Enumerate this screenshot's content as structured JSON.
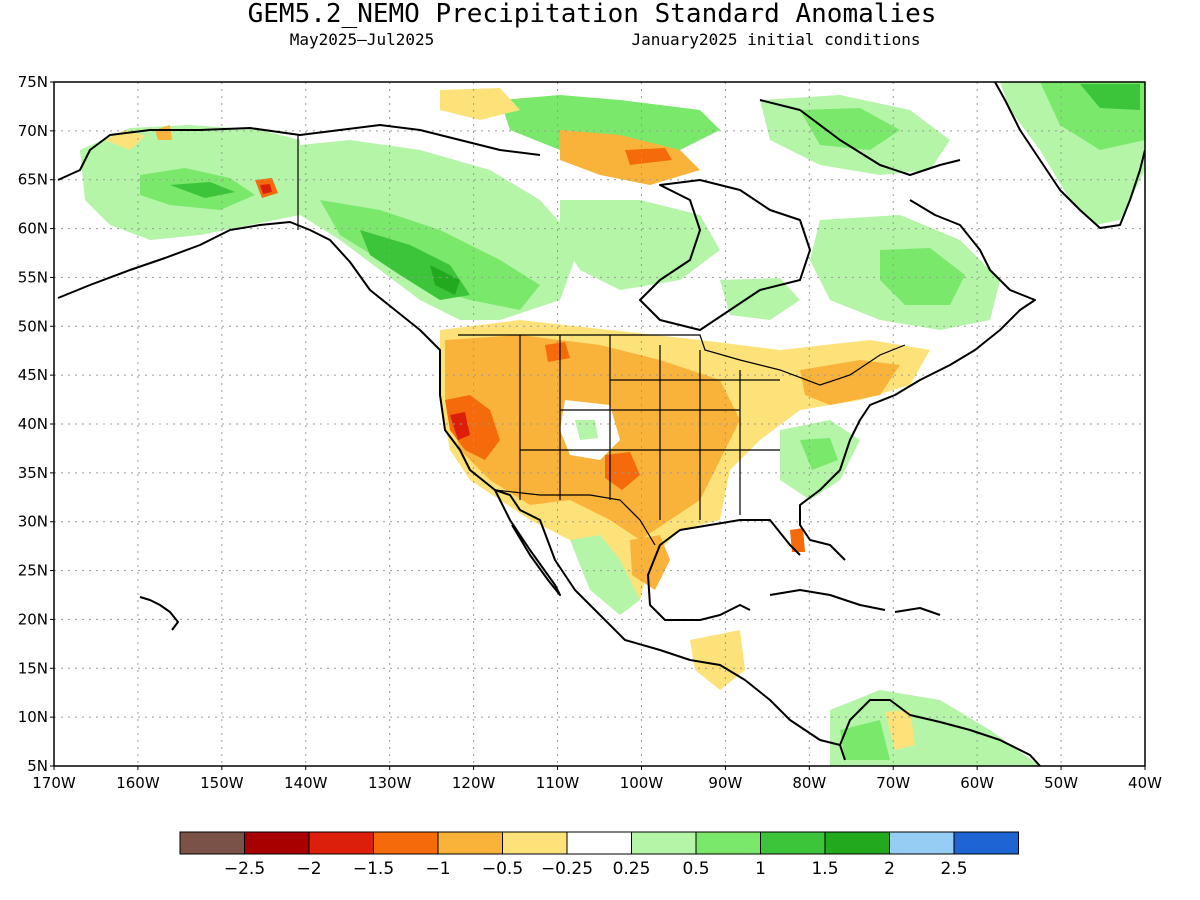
{
  "header": {
    "title": "GEM5.2_NEMO Precipitation Standard Anomalies",
    "period": "May2025–Jul2025",
    "init": "January2025 initial conditions"
  },
  "map": {
    "lon_range": [
      -170,
      -40
    ],
    "lat_range": [
      5,
      75
    ],
    "lon_ticks": [
      {
        "value": -170,
        "label": "170W"
      },
      {
        "value": -160,
        "label": "160W"
      },
      {
        "value": -150,
        "label": "150W"
      },
      {
        "value": -140,
        "label": "140W"
      },
      {
        "value": -130,
        "label": "130W"
      },
      {
        "value": -120,
        "label": "120W"
      },
      {
        "value": -110,
        "label": "110W"
      },
      {
        "value": -100,
        "label": "100W"
      },
      {
        "value": -90,
        "label": "90W"
      },
      {
        "value": -80,
        "label": "80W"
      },
      {
        "value": -70,
        "label": "70W"
      },
      {
        "value": -60,
        "label": "60W"
      },
      {
        "value": -50,
        "label": "50W"
      },
      {
        "value": -40,
        "label": "40W"
      }
    ],
    "lat_ticks": [
      {
        "value": 75,
        "label": "75N"
      },
      {
        "value": 70,
        "label": "70N"
      },
      {
        "value": 65,
        "label": "65N"
      },
      {
        "value": 60,
        "label": "60N"
      },
      {
        "value": 55,
        "label": "55N"
      },
      {
        "value": 50,
        "label": "50N"
      },
      {
        "value": 45,
        "label": "45N"
      },
      {
        "value": 40,
        "label": "40N"
      },
      {
        "value": 35,
        "label": "35N"
      },
      {
        "value": 30,
        "label": "30N"
      },
      {
        "value": 25,
        "label": "25N"
      },
      {
        "value": 20,
        "label": "20N"
      },
      {
        "value": 15,
        "label": "15N"
      },
      {
        "value": 10,
        "label": "10N"
      },
      {
        "value": 5,
        "label": "5N"
      }
    ],
    "grid": true
  },
  "colorbar": {
    "colors": [
      "#7a5248",
      "#a80000",
      "#dc1f0a",
      "#f56a0a",
      "#f9b33a",
      "#fde27a",
      "#ffffff",
      "#b4f5a8",
      "#7ae86a",
      "#3cc43a",
      "#23a91e",
      "#96cdf5",
      "#1e64d2"
    ],
    "labels": [
      "−2.5",
      "−2",
      "−1.5",
      "−1",
      "−0.5",
      "−0.25",
      "0.25",
      "0.5",
      "1",
      "1.5",
      "2",
      "2.5"
    ]
  }
}
